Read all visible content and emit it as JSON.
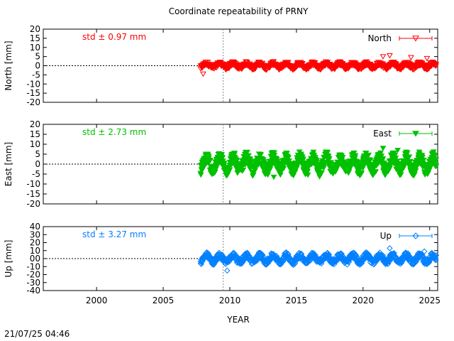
{
  "page": {
    "title": "Coordinate repeatability of PRNY",
    "xlabel": "YEAR",
    "timestamp": "21/07/25 04:46"
  },
  "chart_data": [
    {
      "type": "scatter",
      "ylabel": "North [mm]",
      "ylim": [
        -20,
        20
      ],
      "yticks": [
        "20",
        "15",
        "10",
        "5",
        "0",
        "-5",
        "-10",
        "-15",
        "-20"
      ],
      "xlim": [
        1996,
        2025.6
      ],
      "xticks": [
        "2000",
        "2005",
        "2010",
        "2015",
        "2020",
        "2025"
      ],
      "std_label": "std ± 0.97 mm",
      "series": [
        {
          "name": "North",
          "color": "#ff0000",
          "marker": "triangle-down-open",
          "x_range": [
            2007.8,
            2025.6
          ],
          "amplitude": 2.0,
          "outliers": [
            [
              2021.5,
              5.0
            ],
            [
              2022.0,
              5.5
            ],
            [
              2023.6,
              4.5
            ],
            [
              2024.8,
              4.0
            ],
            [
              2008.0,
              -4.5
            ]
          ]
        }
      ],
      "reference_line_year": 2009.5,
      "zero_line": true
    },
    {
      "type": "scatter",
      "ylabel": "East [mm]",
      "ylim": [
        -20,
        20
      ],
      "yticks": [
        "20",
        "15",
        "10",
        "5",
        "0",
        "-5",
        "-10",
        "-15",
        "-20"
      ],
      "xlim": [
        1996,
        2025.6
      ],
      "xticks": [
        "2000",
        "2005",
        "2010",
        "2015",
        "2020",
        "2025"
      ],
      "std_label": "std ± 2.73 mm",
      "series": [
        {
          "name": "East",
          "color": "#00c000",
          "marker": "triangle-down-filled",
          "x_range": [
            2007.8,
            2025.6
          ],
          "amplitude": 5.5,
          "outliers": [
            [
              2021.5,
              8.0
            ],
            [
              2022.6,
              7.0
            ],
            [
              2013.3,
              -6.5
            ]
          ]
        }
      ],
      "reference_line_year": 2009.5,
      "zero_line": true
    },
    {
      "type": "scatter",
      "ylabel": "Up [mm]",
      "ylim": [
        -40,
        40
      ],
      "yticks": [
        "40",
        "30",
        "20",
        "10",
        "00",
        "-10",
        "-20",
        "-30",
        "-40"
      ],
      "xlim": [
        1996,
        2025.6
      ],
      "xticks": [
        "2000",
        "2005",
        "2010",
        "2015",
        "2020",
        "2025"
      ],
      "std_label": "std ± 3.27 mm",
      "series": [
        {
          "name": "Up",
          "color": "#0080ff",
          "marker": "diamond-open",
          "x_range": [
            2007.8,
            2025.6
          ],
          "amplitude": 7.0,
          "outliers": [
            [
              2009.8,
              -15.0
            ],
            [
              2022.0,
              13.0
            ],
            [
              2024.6,
              9.0
            ]
          ]
        }
      ],
      "reference_line_year": 2009.5,
      "zero_line": true
    }
  ]
}
